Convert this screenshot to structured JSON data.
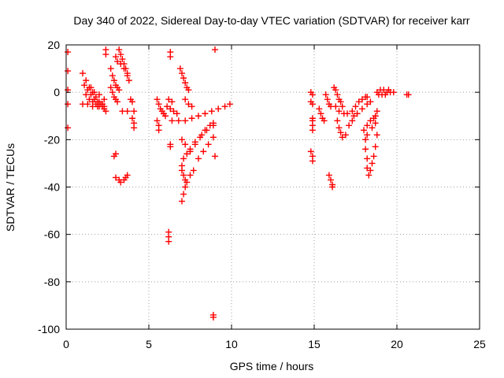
{
  "chart_data": {
    "type": "scatter",
    "title": "Day 340 of 2022, Sidereal Day-to-day VTEC variation (SDTVAR) for receiver karr",
    "xlabel": "GPS time / hours",
    "ylabel": "SDTVAR / TECUs",
    "xlim": [
      0,
      25
    ],
    "ylim": [
      -100,
      20
    ],
    "xticks": [
      0,
      5,
      10,
      15,
      20,
      25
    ],
    "yticks": [
      -100,
      -80,
      -60,
      -40,
      -20,
      0,
      20
    ],
    "grid": true,
    "legend": "none",
    "marker": "plus",
    "color": "#ff0000",
    "series": [
      {
        "points": [
          [
            0.1,
            17
          ],
          [
            0.1,
            9
          ],
          [
            0.1,
            1
          ],
          [
            0.1,
            -5
          ],
          [
            0.1,
            -15
          ],
          [
            1.0,
            8
          ],
          [
            1.2,
            5
          ],
          [
            1.4,
            2
          ],
          [
            1.6,
            0
          ],
          [
            1.8,
            -2
          ],
          [
            2.0,
            -4
          ],
          [
            2.2,
            -5
          ],
          [
            1.1,
            3
          ],
          [
            1.3,
            1
          ],
          [
            1.5,
            -1
          ],
          [
            1.7,
            -3
          ],
          [
            1.9,
            -4
          ],
          [
            2.1,
            -5
          ],
          [
            2.3,
            -6
          ],
          [
            1.2,
            -1
          ],
          [
            1.4,
            -3
          ],
          [
            1.6,
            -4
          ],
          [
            1.8,
            -5
          ],
          [
            2.0,
            -6
          ],
          [
            2.3,
            -7
          ],
          [
            2.4,
            -8
          ],
          [
            1.0,
            -5
          ],
          [
            1.3,
            -5
          ],
          [
            1.6,
            -6
          ],
          [
            1.9,
            -6
          ],
          [
            2.2,
            -6
          ],
          [
            1.5,
            2
          ],
          [
            1.7,
            0
          ],
          [
            2.0,
            -1
          ],
          [
            2.3,
            -3
          ],
          [
            2.4,
            18
          ],
          [
            2.4,
            16
          ],
          [
            2.7,
            10
          ],
          [
            2.8,
            7
          ],
          [
            2.9,
            5
          ],
          [
            3.0,
            3
          ],
          [
            3.1,
            2
          ],
          [
            3.2,
            1
          ],
          [
            2.7,
            2
          ],
          [
            2.8,
            0
          ],
          [
            2.9,
            -2
          ],
          [
            3.0,
            -3
          ],
          [
            3.1,
            -4
          ],
          [
            3.0,
            15
          ],
          [
            3.2,
            18
          ],
          [
            3.3,
            16
          ],
          [
            3.4,
            14
          ],
          [
            3.5,
            12
          ],
          [
            3.6,
            10
          ],
          [
            3.7,
            8
          ],
          [
            3.1,
            13
          ],
          [
            3.3,
            12
          ],
          [
            3.5,
            10
          ],
          [
            3.7,
            7
          ],
          [
            3.8,
            5
          ],
          [
            3.4,
            -8
          ],
          [
            3.7,
            -8
          ],
          [
            4.1,
            -8
          ],
          [
            3.9,
            -3
          ],
          [
            4.0,
            -4
          ],
          [
            4.0,
            -11
          ],
          [
            4.1,
            -13
          ],
          [
            4.1,
            -15
          ],
          [
            2.9,
            -27
          ],
          [
            3.0,
            -26
          ],
          [
            3.0,
            -36
          ],
          [
            3.2,
            -37
          ],
          [
            3.3,
            -38
          ],
          [
            3.5,
            -37
          ],
          [
            3.6,
            -36
          ],
          [
            3.7,
            -35
          ],
          [
            5.5,
            -3
          ],
          [
            5.6,
            -5
          ],
          [
            5.7,
            -7
          ],
          [
            5.8,
            -8
          ],
          [
            5.9,
            -9
          ],
          [
            6.0,
            -10
          ],
          [
            5.5,
            -12
          ],
          [
            5.6,
            -14
          ],
          [
            5.6,
            -16
          ],
          [
            6.1,
            -6
          ],
          [
            6.3,
            -7
          ],
          [
            6.5,
            -8
          ],
          [
            6.7,
            -9
          ],
          [
            6.2,
            -3
          ],
          [
            6.4,
            -4
          ],
          [
            6.4,
            -12
          ],
          [
            6.8,
            -12
          ],
          [
            7.2,
            -12
          ],
          [
            7.6,
            -11
          ],
          [
            8.0,
            -10
          ],
          [
            8.4,
            -9
          ],
          [
            8.8,
            -8
          ],
          [
            9.2,
            -7
          ],
          [
            9.6,
            -6
          ],
          [
            9.9,
            -5
          ],
          [
            6.3,
            17
          ],
          [
            6.3,
            15
          ],
          [
            6.3,
            -22
          ],
          [
            6.3,
            -23
          ],
          [
            6.2,
            -59
          ],
          [
            6.2,
            -61
          ],
          [
            6.2,
            -63
          ],
          [
            6.9,
            10
          ],
          [
            7.0,
            8
          ],
          [
            7.1,
            6
          ],
          [
            7.2,
            4
          ],
          [
            7.3,
            2
          ],
          [
            7.4,
            1
          ],
          [
            7.2,
            -3
          ],
          [
            7.4,
            -5
          ],
          [
            7.6,
            -6
          ],
          [
            7.0,
            -20
          ],
          [
            7.2,
            -22
          ],
          [
            7.5,
            -24
          ],
          [
            7.8,
            -22
          ],
          [
            8.1,
            -19
          ],
          [
            8.4,
            -16
          ],
          [
            8.7,
            -14
          ],
          [
            8.9,
            -13
          ],
          [
            7.0,
            -31
          ],
          [
            7.1,
            -28
          ],
          [
            7.3,
            -26
          ],
          [
            7.5,
            -25
          ],
          [
            7.8,
            -21
          ],
          [
            8.2,
            -18
          ],
          [
            8.5,
            -16
          ],
          [
            8.9,
            -14
          ],
          [
            7.0,
            -46
          ],
          [
            7.1,
            -43
          ],
          [
            7.2,
            -40
          ],
          [
            7.3,
            -38
          ],
          [
            7.5,
            -35
          ],
          [
            7.7,
            -33
          ],
          [
            8.0,
            -28
          ],
          [
            8.3,
            -25
          ],
          [
            8.6,
            -22
          ],
          [
            8.9,
            -19
          ],
          [
            7.0,
            -33
          ],
          [
            7.1,
            -35
          ],
          [
            7.2,
            -37
          ],
          [
            9.0,
            18
          ],
          [
            9.0,
            -27
          ],
          [
            8.9,
            -94
          ],
          [
            8.9,
            -95
          ],
          [
            14.8,
            0
          ],
          [
            14.9,
            -1
          ],
          [
            14.9,
            -5
          ],
          [
            14.8,
            -4
          ],
          [
            14.9,
            -11
          ],
          [
            14.9,
            -12
          ],
          [
            14.9,
            -14
          ],
          [
            14.9,
            -16
          ],
          [
            14.8,
            -25
          ],
          [
            14.9,
            -27
          ],
          [
            14.9,
            -29
          ],
          [
            15.3,
            -7
          ],
          [
            15.4,
            -9
          ],
          [
            15.5,
            -11
          ],
          [
            15.6,
            -12
          ],
          [
            15.7,
            -1
          ],
          [
            15.8,
            -3
          ],
          [
            15.9,
            -5
          ],
          [
            16.0,
            -6
          ],
          [
            16.2,
            2
          ],
          [
            16.3,
            1
          ],
          [
            16.4,
            -1
          ],
          [
            16.5,
            -3
          ],
          [
            16.6,
            -4
          ],
          [
            16.7,
            -6
          ],
          [
            16.3,
            -6
          ],
          [
            16.5,
            -8
          ],
          [
            16.8,
            -9
          ],
          [
            17.0,
            -9
          ],
          [
            16.4,
            -12
          ],
          [
            16.5,
            -15
          ],
          [
            16.6,
            -17
          ],
          [
            16.7,
            -19
          ],
          [
            16.9,
            -18
          ],
          [
            17.1,
            -14
          ],
          [
            17.3,
            -12
          ],
          [
            15.9,
            -35
          ],
          [
            16.0,
            -37
          ],
          [
            16.1,
            -39
          ],
          [
            16.1,
            -40
          ],
          [
            17.3,
            -8
          ],
          [
            17.5,
            -6
          ],
          [
            17.7,
            -4
          ],
          [
            17.9,
            -3
          ],
          [
            18.1,
            -2
          ],
          [
            18.2,
            -2
          ],
          [
            17.4,
            -10
          ],
          [
            17.6,
            -9
          ],
          [
            17.9,
            -7
          ],
          [
            18.2,
            -5
          ],
          [
            18.4,
            -4
          ],
          [
            18.0,
            -16
          ],
          [
            18.2,
            -14
          ],
          [
            18.4,
            -12
          ],
          [
            18.6,
            -11
          ],
          [
            18.7,
            -10
          ],
          [
            18.8,
            -8
          ],
          [
            18.1,
            -20
          ],
          [
            18.1,
            -24
          ],
          [
            18.2,
            -28
          ],
          [
            18.2,
            -32
          ],
          [
            18.3,
            -35
          ],
          [
            18.4,
            -33
          ],
          [
            18.5,
            -30
          ],
          [
            18.6,
            -27
          ],
          [
            18.7,
            -23
          ],
          [
            18.8,
            -18
          ],
          [
            18.2,
            -18
          ],
          [
            18.5,
            -15
          ],
          [
            18.7,
            -13
          ],
          [
            18.8,
            0
          ],
          [
            19.0,
            1
          ],
          [
            19.2,
            1
          ],
          [
            19.4,
            0
          ],
          [
            19.6,
            0
          ],
          [
            19.8,
            0
          ],
          [
            18.9,
            -1
          ],
          [
            19.1,
            -1
          ],
          [
            19.3,
            -1
          ],
          [
            19.5,
            1
          ],
          [
            20.6,
            -1
          ],
          [
            20.7,
            -1
          ]
        ]
      }
    ]
  }
}
